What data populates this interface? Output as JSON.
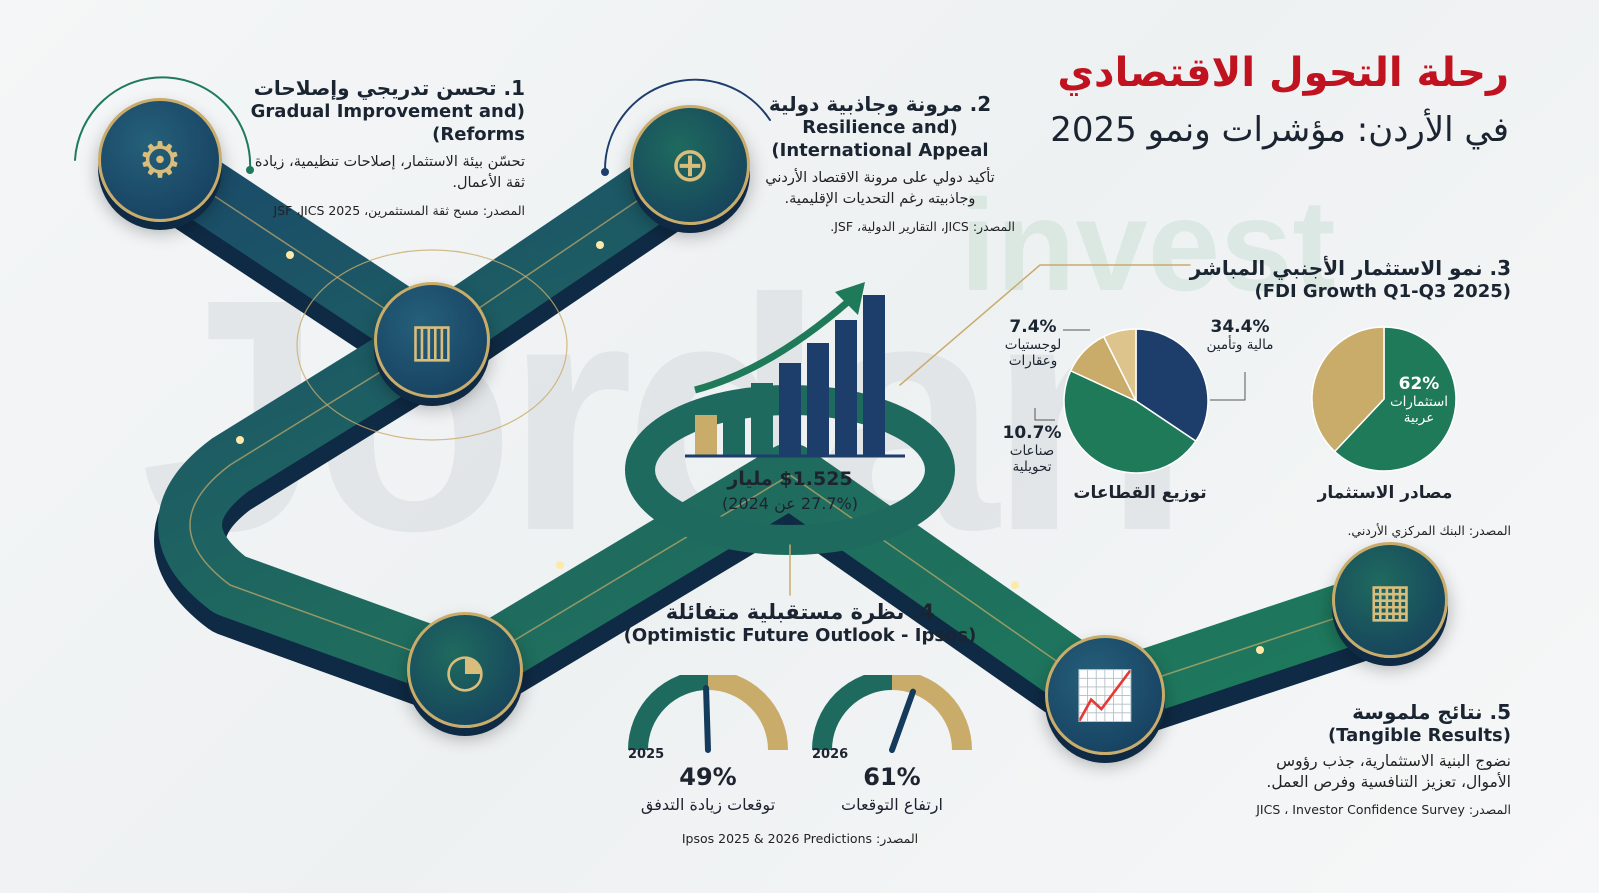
{
  "title": {
    "line1": "رحلة التحول الاقتصادي",
    "line2": "في الأردن: مؤشرات ونمو 2025"
  },
  "watermark": {
    "text": "Jordan",
    "sub": "invest"
  },
  "colors": {
    "title_red": "#c0121f",
    "navy": "#1d3d6b",
    "green": "#1f7a5a",
    "gold": "#c9ab6a"
  },
  "section1": {
    "title": "1. تحسن تدريجي وإصلاحات",
    "title_en": "(Gradual Improvement and Reforms)",
    "body": "تحسّن بيئة الاستثمار، إصلاحات تنظيمية، زيادة ثقة الأعمال.",
    "source": "المصدر: مسح ثقة المستثمرين، JSF ،JICS 2025"
  },
  "section2": {
    "title": "2. مرونة وجاذبية دولية",
    "title_en": "(Resilience and International Appeal)",
    "body": "تأكيد دولي على مرونة الاقتصاد الأردني وجاذبيته رغم التحديات الإقليمية.",
    "source": "المصدر: JICS، التقارير الدولية، JSF."
  },
  "section3": {
    "title": "3. نمو الاستثمار الأجنبي المباشر",
    "title_en": "(FDI Growth Q1-Q3 2025)",
    "source": "المصدر: البنك المركزي الأردني."
  },
  "center": {
    "value": "$1.525 مليار",
    "change": "(27.7% عن 2024)"
  },
  "chart_data": [
    {
      "type": "pie",
      "title": "توزيع القطاعات",
      "slices": [
        {
          "label": "مالية وتأمين",
          "value": 34.4,
          "display": "34.4%",
          "color": "#1d3d6b"
        },
        {
          "label": "",
          "value": null,
          "color": "#1f7a5a"
        },
        {
          "label": "صناعات تحويلية",
          "value": 10.7,
          "display": "10.7%",
          "color": "#c9ab6a"
        },
        {
          "label": "لوجستيات وعقارات",
          "value": 7.4,
          "display": "7.4%",
          "color": "#dcc48c"
        }
      ]
    },
    {
      "type": "pie",
      "title": "مصادر الاستثمار",
      "slices": [
        {
          "label": "استثمارات عربية",
          "value": 62,
          "display": "62%",
          "color": "#1f7a5a"
        },
        {
          "label": "",
          "value": null,
          "color": "#c9ab6a"
        }
      ]
    }
  ],
  "section4": {
    "title": "4. نظرة مستقبلية متفائلة",
    "title_en": "(Optimistic Future Outlook - Ipsos)",
    "gauges": [
      {
        "year": "2025",
        "value": 49,
        "display": "49%",
        "label": "توقعات زيادة التدفق"
      },
      {
        "year": "2026",
        "value": 61,
        "display": "61%",
        "label": "ارتفاع التوقعات"
      }
    ],
    "source": "المصدر: Ipsos 2025 & 2026 Predictions"
  },
  "section5": {
    "title": "5. نتائج ملموسة",
    "title_en": "(Tangible Results)",
    "body": "نضوج البنية الاستثمارية، جذب رؤوس الأموال، تعزيز التنافسية وفرص العمل.",
    "source": "المصدر: JICS ، Investor Confidence Survey"
  },
  "icons": [
    "gears-arrow-icon",
    "shield-globe-icon",
    "growth-chart-icon",
    "speedometer-icon",
    "line-chart-icon",
    "building-chart-icon"
  ]
}
